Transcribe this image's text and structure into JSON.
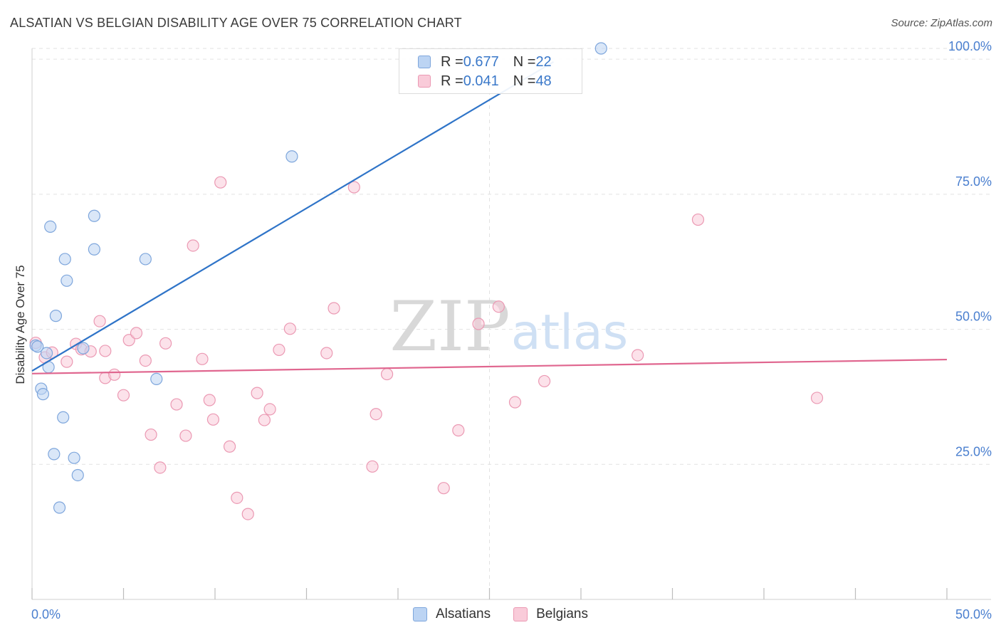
{
  "title": "ALSATIAN VS BELGIAN DISABILITY AGE OVER 75 CORRELATION CHART",
  "source": "Source: ZipAtlas.com",
  "watermark": {
    "zip": "ZIP",
    "atlas": "atlas"
  },
  "legend_top": [
    {
      "r_label": "R = ",
      "r_value": "0.677",
      "n_label": "N = ",
      "n_value": "22"
    },
    {
      "r_label": "R = ",
      "r_value": "0.041",
      "n_label": "N = ",
      "n_value": "48"
    }
  ],
  "legend_bottom": [
    {
      "label": "Alsatians"
    },
    {
      "label": "Belgians"
    }
  ],
  "colors": {
    "blue_fill": "#bcd4f3",
    "blue_stroke": "#7ea6dc",
    "blue_line": "#2f74c8",
    "pink_fill": "#f9cbd9",
    "pink_stroke": "#eb99b3",
    "pink_line": "#e0668f",
    "tick_text": "#4a7fcf",
    "grid": "#e2e2e2"
  },
  "chart_data": {
    "type": "scatter",
    "xlabel": "",
    "ylabel": "Disability Age Over 75",
    "xlim": [
      0,
      50
    ],
    "ylim": [
      0,
      102
    ],
    "x_tick_labels": [
      {
        "value": 0,
        "label": "0.0%"
      },
      {
        "value": 50,
        "label": "50.0%"
      }
    ],
    "y_tick_labels": [
      {
        "value": 25,
        "label": "25.0%"
      },
      {
        "value": 50,
        "label": "50.0%"
      },
      {
        "value": 75,
        "label": "75.0%"
      },
      {
        "value": 100,
        "label": "100.0%"
      }
    ],
    "series": [
      {
        "name": "Alsatians",
        "color": "blue",
        "trend": {
          "x": [
            0,
            28.5
          ],
          "y": [
            42.3,
            99.5
          ]
        },
        "points": [
          [
            0.2,
            47.0
          ],
          [
            0.8,
            45.6
          ],
          [
            0.9,
            43.0
          ],
          [
            0.5,
            39.0
          ],
          [
            0.6,
            38.0
          ],
          [
            1.7,
            33.7
          ],
          [
            1.2,
            26.9
          ],
          [
            2.3,
            26.2
          ],
          [
            2.5,
            23.0
          ],
          [
            1.5,
            17.0
          ],
          [
            1.0,
            69.0
          ],
          [
            1.8,
            63.0
          ],
          [
            1.9,
            59.0
          ],
          [
            1.3,
            52.5
          ],
          [
            2.8,
            46.5
          ],
          [
            3.4,
            71.0
          ],
          [
            3.4,
            64.8
          ],
          [
            6.2,
            63.0
          ],
          [
            6.8,
            40.8
          ],
          [
            14.2,
            82.0
          ],
          [
            31.1,
            102.0
          ],
          [
            0.3,
            46.8
          ]
        ]
      },
      {
        "name": "Belgians",
        "color": "pink",
        "trend": {
          "x": [
            0,
            50
          ],
          "y": [
            41.8,
            44.4
          ]
        },
        "points": [
          [
            0.2,
            47.5
          ],
          [
            0.7,
            44.8
          ],
          [
            1.1,
            45.7
          ],
          [
            1.9,
            44.0
          ],
          [
            2.4,
            47.3
          ],
          [
            2.7,
            46.3
          ],
          [
            3.2,
            45.9
          ],
          [
            3.7,
            51.5
          ],
          [
            4.0,
            41.0
          ],
          [
            4.5,
            41.6
          ],
          [
            5.0,
            37.8
          ],
          [
            5.3,
            48.0
          ],
          [
            5.7,
            49.3
          ],
          [
            6.2,
            44.2
          ],
          [
            6.5,
            30.5
          ],
          [
            7.0,
            24.4
          ],
          [
            7.3,
            47.4
          ],
          [
            7.9,
            36.1
          ],
          [
            8.4,
            30.3
          ],
          [
            8.8,
            65.5
          ],
          [
            9.3,
            44.5
          ],
          [
            9.7,
            36.9
          ],
          [
            9.9,
            33.3
          ],
          [
            10.3,
            77.2
          ],
          [
            10.8,
            28.3
          ],
          [
            11.2,
            18.8
          ],
          [
            11.8,
            15.8
          ],
          [
            12.3,
            38.2
          ],
          [
            12.7,
            33.2
          ],
          [
            13.0,
            35.2
          ],
          [
            13.5,
            46.2
          ],
          [
            14.1,
            50.1
          ],
          [
            16.1,
            45.6
          ],
          [
            16.5,
            53.9
          ],
          [
            17.6,
            76.3
          ],
          [
            18.6,
            24.6
          ],
          [
            18.8,
            34.3
          ],
          [
            19.4,
            41.7
          ],
          [
            22.5,
            20.6
          ],
          [
            23.3,
            31.3
          ],
          [
            24.4,
            51.0
          ],
          [
            25.5,
            54.2
          ],
          [
            26.4,
            36.5
          ],
          [
            28.0,
            40.4
          ],
          [
            33.1,
            45.2
          ],
          [
            36.4,
            70.3
          ],
          [
            42.9,
            37.3
          ],
          [
            4.0,
            46.0
          ]
        ]
      }
    ]
  }
}
